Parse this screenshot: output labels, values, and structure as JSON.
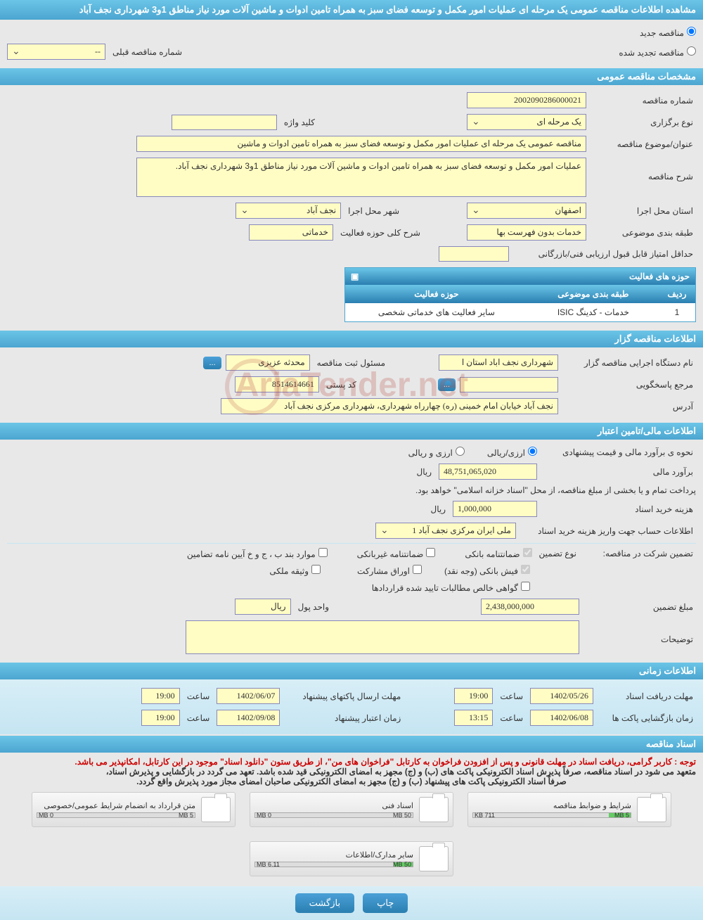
{
  "title": "مشاهده اطلاعات مناقصه عمومی یک مرحله ای عملیات امور مکمل و توسعه فضای سبز به همراه تامین ادوات و ماشین آلات مورد نیاز مناطق 1و3 شهرداری نجف آباد",
  "radio_options": {
    "new_tender": "مناقصه جدید",
    "renewed_tender": "مناقصه تجدید شده",
    "previous_number_label": "شماره مناقصه قبلی",
    "previous_number_value": "--"
  },
  "sections": {
    "general": {
      "header": "مشخصات مناقصه عمومی",
      "tender_number_label": "شماره مناقصه",
      "tender_number": "2002090286000021",
      "holding_type_label": "نوع برگزاری",
      "holding_type": "یک مرحله ای",
      "keyword_label": "کلید واژه",
      "keyword": "",
      "subject_label": "عنوان/موضوع مناقصه",
      "subject": "مناقصه عمومی یک مرحله ای عملیات امور مکمل و توسعه فضای سبز به همراه تامین ادوات و ماشین",
      "description_label": "شرح مناقصه",
      "description": "عملیات امور مکمل و توسعه فضای سبز به همراه تامین ادوات و ماشین آلات مورد نیاز مناطق 1و3 شهرداری نجف آباد.",
      "province_label": "استان محل اجرا",
      "province": "اصفهان",
      "city_label": "شهر محل اجرا",
      "city": "نجف آباد",
      "category_label": "طبقه بندی موضوعی",
      "category": "خدمات بدون فهرست بها",
      "activity_domain_label": "شرح کلی حوزه فعالیت",
      "activity_domain": "خدماتی",
      "min_score_label": "حداقل امتیاز قابل قبول ارزیابی فنی/بازرگانی",
      "min_score": "",
      "table_header": "حوزه های فعالیت",
      "table_col_idx": "ردیف",
      "table_col_a": "طبقه بندی موضوعی",
      "table_col_b": "حوزه فعالیت",
      "table_row_idx": "1",
      "table_row_a": "خدمات - کدینگ ISIC",
      "table_row_b": "سایر فعالیت های خدماتی شخصی"
    },
    "organizer": {
      "header": "اطلاعات مناقصه گزار",
      "org_name_label": "نام دستگاه اجرایی مناقصه گزار",
      "org_name": "شهرداری نجف اباد استان ا",
      "registrar_label": "مسئول ثبت مناقصه",
      "registrar": "محدثه عزیزی",
      "responder_label": "مرجع پاسخگویی",
      "responder": "",
      "postal_label": "کد پستی",
      "postal": "8514614661",
      "address_label": "آدرس",
      "address": "نجف آباد خیابان امام خمینی (ره) چهارراه شهرداری، شهرداری مرکزی نجف آباد"
    },
    "financial": {
      "header": "اطلاعات مالی/تامین اعتبار",
      "method_label": "نحوه ی برآورد مالی و قیمت پیشنهادی",
      "method_rial": "ارزی/ریالی",
      "method_arz": "ارزی و ریالی",
      "estimate_label": "برآورد مالی",
      "estimate": "48,751,065,020",
      "currency": "ریال",
      "payment_note": "پرداخت تمام و یا بخشی از مبلغ مناقصه، از محل \"اسناد خزانه اسلامی\" خواهد بود.",
      "doc_fee_label": "هزینه خرید اسناد",
      "doc_fee": "1,000,000",
      "account_label": "اطلاعات حساب جهت واریز هزینه خرید اسناد",
      "account": "ملی ایران مرکزی نجف آباد 1",
      "guarantee_label": "تضمین شرکت در مناقصه:",
      "guarantee_type_label": "نوع تضمین",
      "g_bank": "ضمانتنامه بانکی",
      "g_nonbank": "ضمانتنامه غیربانکی",
      "g_items": "موارد بند ب ، ج و خ آیین نامه تضامین",
      "g_cash": "فیش بانکی (وجه نقد)",
      "g_securities": "اوراق مشارکت",
      "g_property": "وثیقه ملکی",
      "g_cert": "گواهی خالص مطالبات تایید شده قراردادها",
      "guarantee_amount_label": "مبلغ تضمین",
      "guarantee_amount": "2,438,000,000",
      "unit_label": "واحد پول",
      "unit": "ریال",
      "notes_label": "توضیحات",
      "notes": ""
    },
    "timing": {
      "header": "اطلاعات زمانی",
      "receive_deadline_label": "مهلت دریافت اسناد",
      "receive_date": "1402/05/26",
      "time_label": "ساعت",
      "receive_time": "19:00",
      "submit_deadline_label": "مهلت ارسال پاکتهای پیشنهاد",
      "submit_date": "1402/06/07",
      "submit_time": "19:00",
      "opening_label": "زمان بازگشایی پاکت ها",
      "opening_date": "1402/06/08",
      "opening_time": "13:15",
      "validity_label": "زمان اعتبار پیشنهاد",
      "validity_date": "1402/09/08",
      "validity_time": "19:00"
    },
    "docs": {
      "header": "اسناد مناقصه",
      "note_red": "توجه : کاربر گرامی، دریافت اسناد در مهلت قانونی و پس از افزودن فراخوان به کارتابل \"فراخوان های من\"، از طریق ستون \"دانلود اسناد\" موجود در این کارتابل، امکانپذیر می باشد.",
      "note_bold1": "متعهد می شود در اسناد مناقصه، صرفاً پذیرش اسناد الکترونیکی پاکت های (ب) و (ج) مجهز به امضای الکترونیکی قید شده باشد. تعهد می گردد در بازگشایی و پذیرش اسناد،",
      "note_bold2": "صرفاً اسناد الکترونیکی پاکت های پیشنهاد (ب) و (ج) مجهز به امضای الکترونیکی صاحبان امضای مجاز مورد پذیرش واقع گردد.",
      "attachments": [
        {
          "title": "شرایط و ضوابط مناقصه",
          "used": "711 KB",
          "max": "5 MB",
          "pct": 14
        },
        {
          "title": "اسناد فنی",
          "used": "0 MB",
          "max": "50 MB",
          "pct": 0
        },
        {
          "title": "متن قرارداد به انضمام شرایط عمومی/خصوصی",
          "used": "0 MB",
          "max": "5 MB",
          "pct": 0
        },
        {
          "title": "سایر مدارک/اطلاعات",
          "used": "6.11 MB",
          "max": "50 MB",
          "pct": 12
        }
      ]
    }
  },
  "buttons": {
    "print": "چاپ",
    "back": "بازگشت",
    "ellipsis": "..."
  },
  "watermark": "AriaTender.net"
}
